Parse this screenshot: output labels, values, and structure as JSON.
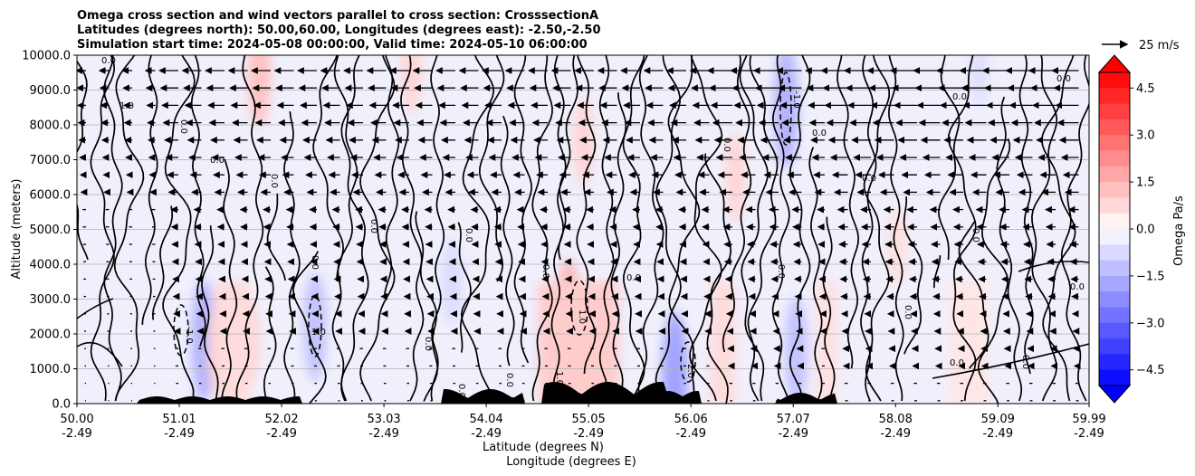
{
  "chart_data": {
    "type": "heatmap",
    "title": [
      "Omega cross section and wind vectors parallel to cross section: CrosssectionA",
      "Latitudes (degrees north): 50.00,60.00, Longitudes (degrees east): -2.50,-2.50",
      "Simulation start time: 2024-05-08 00:00:00, Valid time: 2024-05-10 06:00:00"
    ],
    "ylabel": "Altitude (meters)",
    "xlabel_lat": "Latitude (degrees N)",
    "xlabel_lon": "Longitude (degrees E)",
    "ylim": [
      0,
      10000
    ],
    "yticks": [
      "0.0",
      "1000.0",
      "2000.0",
      "3000.0",
      "4000.0",
      "5000.0",
      "6000.0",
      "7000.0",
      "8000.0",
      "9000.0",
      "10000.0"
    ],
    "xlim": [
      50.0,
      59.99
    ],
    "xticks": [
      {
        "lat": "50.00",
        "lon": "-2.49"
      },
      {
        "lat": "51.01",
        "lon": "-2.49"
      },
      {
        "lat": "52.02",
        "lon": "-2.49"
      },
      {
        "lat": "53.03",
        "lon": "-2.49"
      },
      {
        "lat": "54.04",
        "lon": "-2.49"
      },
      {
        "lat": "55.05",
        "lon": "-2.49"
      },
      {
        "lat": "56.06",
        "lon": "-2.49"
      },
      {
        "lat": "57.07",
        "lon": "-2.49"
      },
      {
        "lat": "58.08",
        "lon": "-2.49"
      },
      {
        "lat": "59.09",
        "lon": "-2.49"
      },
      {
        "lat": "59.99",
        "lon": "-2.49"
      }
    ],
    "grid": "horizontal",
    "colorbar": {
      "label": "Omega Pa/s",
      "range": [
        -5.0,
        5.0
      ],
      "ticks": [
        "4.5",
        "3.0",
        "1.5",
        "0.0",
        "−1.5",
        "−3.0",
        "−4.5"
      ],
      "tick_values": [
        4.5,
        3.0,
        1.5,
        0.0,
        -1.5,
        -3.0,
        -4.5
      ],
      "levels": 20,
      "cmap": "bwr"
    },
    "quiver_key": {
      "label": "25 m/s",
      "speed": 25
    },
    "contour_labels": [
      "0.0",
      "1.0",
      "-1.0",
      "2.0"
    ],
    "omega_regions": [
      {
        "lat": 51.25,
        "alt": 1800,
        "value": -1.5
      },
      {
        "lat": 52.35,
        "alt": 2200,
        "value": -1.2
      },
      {
        "lat": 51.4,
        "alt": 1600,
        "value": 1.0
      },
      {
        "lat": 51.7,
        "alt": 1800,
        "value": 0.8
      },
      {
        "lat": 54.85,
        "alt": 2400,
        "value": 1.5
      },
      {
        "lat": 55.2,
        "alt": 1500,
        "value": 1.8
      },
      {
        "lat": 55.9,
        "alt": 700,
        "value": -1.8
      },
      {
        "lat": 57.0,
        "alt": 8500,
        "value": -1.5
      },
      {
        "lat": 57.1,
        "alt": 1500,
        "value": -1.2
      },
      {
        "lat": 55.0,
        "alt": 7500,
        "value": 0.8
      },
      {
        "lat": 56.5,
        "alt": 6500,
        "value": 0.8
      },
      {
        "lat": 58.1,
        "alt": 4500,
        "value": 0.6
      },
      {
        "lat": 51.8,
        "alt": 9500,
        "value": 1.2
      },
      {
        "lat": 53.3,
        "alt": 9600,
        "value": 0.8
      },
      {
        "lat": 58.9,
        "alt": 9700,
        "value": -0.6
      },
      {
        "lat": 53.7,
        "alt": 3500,
        "value": -0.7
      },
      {
        "lat": 56.4,
        "alt": 1800,
        "value": 0.9
      }
    ]
  }
}
